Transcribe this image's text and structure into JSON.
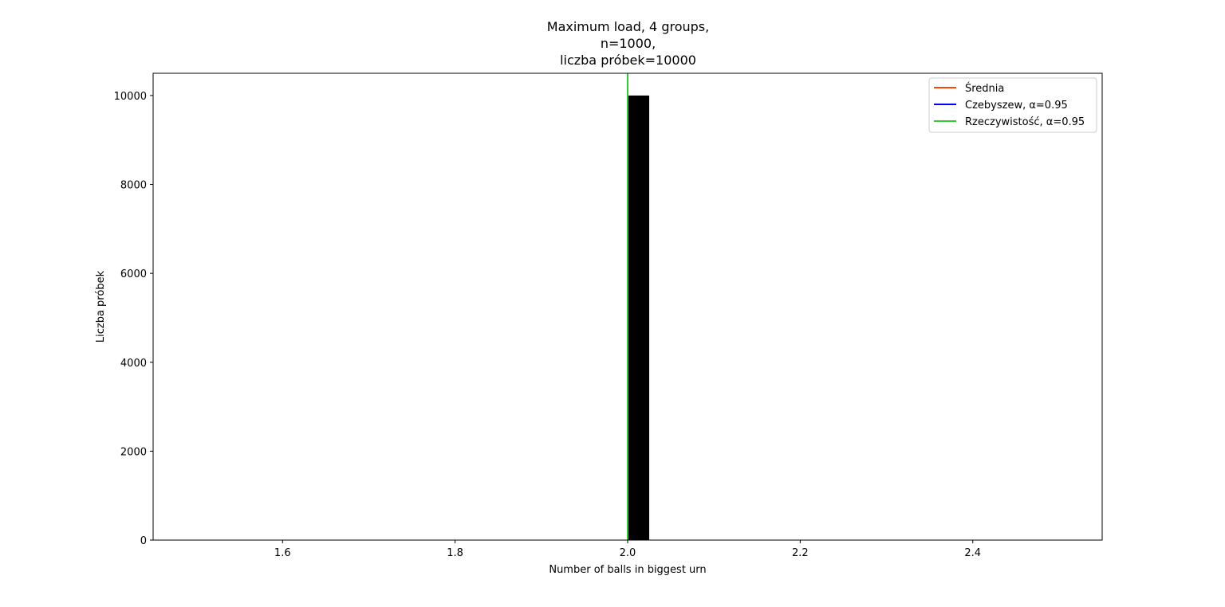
{
  "chart_data": {
    "type": "bar",
    "title_lines": [
      "Maximum load, 4 groups,",
      "n=1000,",
      "liczba próbek=10000"
    ],
    "xlabel": "Number of balls in biggest urn",
    "ylabel": "Liczba próbek",
    "xlim": [
      1.45,
      2.55
    ],
    "ylim": [
      0,
      10500
    ],
    "xticks": [
      1.6,
      1.8,
      2.0,
      2.2,
      2.4
    ],
    "xtick_labels": [
      "1.6",
      "1.8",
      "2.0",
      "2.2",
      "2.4"
    ],
    "yticks": [
      0,
      2000,
      4000,
      6000,
      8000,
      10000
    ],
    "ytick_labels": [
      "0",
      "2000",
      "4000",
      "6000",
      "8000",
      "10000"
    ],
    "bars": [
      {
        "x_start": 2.0,
        "x_end": 2.025,
        "value": 10000,
        "color": "#000000"
      }
    ],
    "vlines": [
      {
        "name": "Średnia",
        "x": 2.0,
        "color": "#ff4500"
      },
      {
        "name": "Czebyszew, α=0.95",
        "x": 2.0,
        "color": "#0000ff"
      },
      {
        "name": "Rzeczywistość, α=0.95",
        "x": 2.0,
        "color": "#32cd32"
      }
    ],
    "legend": {
      "position": "top-right",
      "entries": [
        "Średnia",
        "Czebyszew, α=0.95",
        "Rzeczywistość, α=0.95"
      ]
    },
    "grid": false
  }
}
